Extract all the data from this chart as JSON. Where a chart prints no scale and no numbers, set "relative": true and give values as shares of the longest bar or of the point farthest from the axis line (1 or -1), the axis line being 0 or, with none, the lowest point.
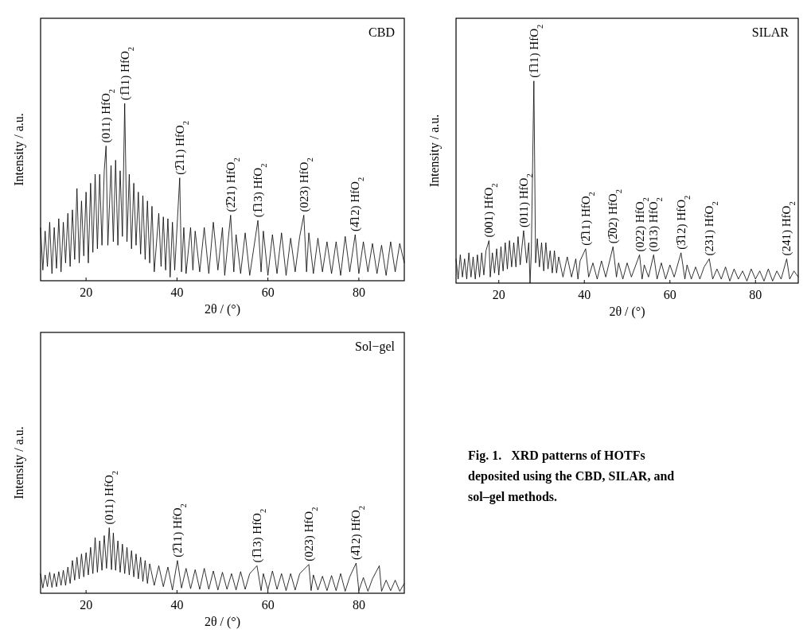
{
  "chart_data": [
    {
      "type": "line",
      "title": "CBD",
      "xlabel": "2θ / (°)",
      "ylabel": "Intensity / a.u.",
      "relative": true,
      "xlim": [
        10,
        90
      ],
      "xticks": [
        20,
        40,
        60,
        80
      ],
      "series": [
        {
          "color": "#000000",
          "x": [
            10,
            10.5,
            11,
            11.5,
            12,
            12.5,
            13,
            13.5,
            14,
            14.5,
            15,
            15.5,
            16,
            16.5,
            17,
            17.5,
            18,
            18.5,
            19,
            19.5,
            20,
            20.5,
            21,
            21.5,
            22,
            22.5,
            23,
            23.5,
            24,
            24.4,
            24.8,
            25.5,
            26,
            26.5,
            27,
            27.5,
            28,
            28.5,
            29,
            29.5,
            30,
            30.5,
            31,
            31.5,
            32,
            32.5,
            33,
            33.5,
            34,
            34.5,
            35,
            36,
            36.5,
            37,
            37.5,
            38,
            38.5,
            39,
            39.5,
            40.6,
            41,
            41.5,
            42,
            43,
            43.5,
            44,
            45,
            46,
            47,
            48,
            49,
            50,
            50.5,
            51.8,
            52.5,
            53,
            54,
            55,
            56,
            57.8,
            58.5,
            59,
            60,
            61,
            62,
            63,
            64,
            65,
            66,
            67,
            67.9,
            68.5,
            69,
            70,
            71,
            72,
            73,
            74,
            75,
            76,
            77,
            78,
            79.2,
            80,
            81,
            82,
            83,
            84,
            85,
            86,
            87,
            88,
            89,
            90
          ],
          "values": [
            0.3,
            0.06,
            0.28,
            0.08,
            0.33,
            0.04,
            0.3,
            0.07,
            0.35,
            0.05,
            0.33,
            0.1,
            0.38,
            0.08,
            0.4,
            0.12,
            0.52,
            0.1,
            0.45,
            0.14,
            0.5,
            0.1,
            0.55,
            0.16,
            0.6,
            0.18,
            0.6,
            0.2,
            0.62,
            0.76,
            0.2,
            0.65,
            0.22,
            0.68,
            0.2,
            0.62,
            0.25,
            1,
            0.22,
            0.6,
            0.18,
            0.55,
            0.2,
            0.5,
            0.15,
            0.48,
            0.12,
            0.45,
            0.1,
            0.42,
            0.05,
            0.38,
            0.08,
            0.36,
            0.06,
            0.35,
            0.02,
            0.33,
            0.06,
            0.58,
            0.05,
            0.3,
            0.04,
            0.3,
            0.06,
            0.28,
            0.05,
            0.3,
            0.04,
            0.33,
            0.06,
            0.3,
            0.03,
            0.37,
            0.05,
            0.26,
            0.04,
            0.27,
            0.03,
            0.34,
            0.05,
            0.28,
            0.03,
            0.26,
            0.04,
            0.27,
            0.03,
            0.24,
            0.05,
            0.25,
            0.37,
            0.05,
            0.27,
            0.04,
            0.24,
            0.05,
            0.22,
            0.04,
            0.22,
            0.03,
            0.25,
            0.05,
            0.26,
            0.04,
            0.22,
            0.05,
            0.21,
            0.04,
            0.2,
            0.03,
            0.22,
            0.05,
            0.21,
            0.1
          ]
        }
      ],
      "annotations": [
        {
          "text": "(011) HfO$_{2}$",
          "x": 24.4,
          "y": 0.76
        },
        {
          "text": "(1̅11) HfO$_{2}$",
          "x": 28.5,
          "y": 1
        },
        {
          "text": "(2̅11) HfO$_{2}$",
          "x": 40.6,
          "y": 0.58
        },
        {
          "text": "(2̅21) HfO$_{2}$",
          "x": 51.8,
          "y": 0.37
        },
        {
          "text": "(1̅13) HfO$_{2}$",
          "x": 57.8,
          "y": 0.34
        },
        {
          "text": "(023) HfO$_{2}$",
          "x": 67.9,
          "y": 0.37
        },
        {
          "text": "(4̅12) HfO$_{2}$",
          "x": 79.2,
          "y": 0.26
        }
      ]
    },
    {
      "type": "line",
      "title": "SILAR",
      "xlabel": "2θ / (°)",
      "ylabel": "Intensity / a.u.",
      "relative": true,
      "xlim": [
        10,
        90
      ],
      "xticks": [
        20,
        40,
        60,
        80
      ],
      "series": [
        {
          "color": "#000000",
          "x": [
            10,
            10.5,
            11,
            11.5,
            12,
            12.5,
            13,
            13.5,
            14,
            14.5,
            15,
            15.5,
            16,
            16.5,
            17,
            17.7,
            18,
            18.5,
            19,
            19.5,
            20,
            20.5,
            21,
            21.5,
            22,
            22.5,
            23,
            23.5,
            24,
            24.5,
            25,
            25.8,
            26.5,
            27,
            27.3,
            27.6,
            28.2,
            28.6,
            29,
            29.5,
            30,
            30.5,
            31,
            31.5,
            32,
            32.5,
            33,
            33.5,
            34,
            35,
            36,
            37,
            38,
            38.5,
            39,
            40.3,
            41,
            42,
            43,
            44,
            45,
            46.7,
            47.5,
            48,
            49,
            50,
            51,
            52.9,
            53.5,
            54,
            55,
            56.2,
            57,
            58,
            59,
            60,
            61,
            62.6,
            63.5,
            64,
            65,
            66,
            67,
            68,
            69.2,
            70,
            71,
            72,
            73,
            74,
            75,
            76,
            77,
            78,
            79,
            80,
            81,
            82,
            83,
            84,
            85,
            86,
            87.3,
            88,
            89,
            90
          ],
          "values": [
            0.12,
            0.02,
            0.14,
            0.03,
            0.12,
            0.02,
            0.15,
            0.03,
            0.13,
            0.02,
            0.14,
            0.03,
            0.15,
            0.04,
            0.16,
            0.21,
            0.03,
            0.15,
            0.05,
            0.17,
            0.04,
            0.18,
            0.06,
            0.2,
            0.07,
            0.21,
            0.08,
            0.2,
            0.08,
            0.23,
            0.09,
            0.26,
            0.1,
            0.2,
            0,
            0.15,
            1,
            0.1,
            0.22,
            0.08,
            0.2,
            0.06,
            0.2,
            0.07,
            0.16,
            0.05,
            0.16,
            0.05,
            0.13,
            0.03,
            0.13,
            0.03,
            0.12,
            0.02,
            0.11,
            0.17,
            0.03,
            0.1,
            0.02,
            0.11,
            0.03,
            0.18,
            0.03,
            0.1,
            0.02,
            0.1,
            0.03,
            0.14,
            0.02,
            0.09,
            0.03,
            0.14,
            0.02,
            0.1,
            0.02,
            0.09,
            0.03,
            0.15,
            0.02,
            0.09,
            0.02,
            0.08,
            0.02,
            0.08,
            0.12,
            0.02,
            0.07,
            0.02,
            0.08,
            0.01,
            0.07,
            0.02,
            0.06,
            0.01,
            0.07,
            0.02,
            0.06,
            0.01,
            0.07,
            0.01,
            0.06,
            0.02,
            0.12,
            0.02,
            0.06,
            0.03
          ]
        }
      ],
      "annotations": [
        {
          "text": "(001) HfO$_{2}$",
          "x": 17.7,
          "y": 0.21
        },
        {
          "text": "(011) HfO$_{2}$",
          "x": 25.8,
          "y": 0.26
        },
        {
          "text": "(1̅11) HfO$_{2}$",
          "x": 28.2,
          "y": 1
        },
        {
          "text": "(2̅11) HfO$_{2}$",
          "x": 40.3,
          "y": 0.17
        },
        {
          "text": "(2̅02) HfO$_{2}$",
          "x": 46.7,
          "y": 0.18
        },
        {
          "text": "(022) HfO$_{2}$",
          "x": 52.9,
          "y": 0.14
        },
        {
          "text": "(013) HfO$_{2}$",
          "x": 56.2,
          "y": 0.14
        },
        {
          "text": "(3̅12) HfO$_{2}$",
          "x": 62.6,
          "y": 0.15
        },
        {
          "text": "(231) HfO$_{2}$",
          "x": 69.2,
          "y": 0.12
        },
        {
          "text": "(241) HfO$_{2}$",
          "x": 87.3,
          "y": 0.12
        }
      ]
    },
    {
      "type": "line",
      "title": "Sol−gel",
      "xlabel": "2θ / (°)",
      "ylabel": "Intensity / a.u.",
      "relative": true,
      "xlim": [
        10,
        90
      ],
      "xticks": [
        20,
        40,
        60,
        80
      ],
      "series": [
        {
          "color": "#000000",
          "x": [
            10,
            10.5,
            11,
            11.5,
            12,
            12.5,
            13,
            13.5,
            14,
            14.5,
            15,
            15.5,
            16,
            16.5,
            17,
            17.5,
            18,
            18.5,
            19,
            19.5,
            20,
            20.5,
            21,
            21.5,
            22,
            22.5,
            23,
            23.5,
            24,
            24.5,
            25.1,
            25.6,
            26,
            26.5,
            27,
            27.5,
            28,
            28.5,
            29,
            29.5,
            30,
            30.5,
            31,
            31.5,
            32,
            32.5,
            33,
            33.5,
            34,
            35,
            36,
            37,
            38,
            39,
            40.1,
            41,
            42,
            43,
            44,
            45,
            46,
            47,
            48,
            49,
            50,
            51,
            52,
            53,
            54,
            55,
            56,
            57.6,
            58.5,
            59,
            60,
            61,
            62,
            63,
            64,
            65,
            66,
            67,
            69,
            69.5,
            70,
            71,
            72,
            73,
            74,
            75,
            76,
            77,
            78,
            79.4,
            80,
            81,
            82,
            83,
            84.5,
            85,
            86,
            87,
            88,
            89,
            90
          ],
          "values": [
            0.3,
            0.08,
            0.28,
            0.1,
            0.32,
            0.09,
            0.3,
            0.1,
            0.33,
            0.12,
            0.35,
            0.12,
            0.4,
            0.15,
            0.5,
            0.2,
            0.55,
            0.22,
            0.6,
            0.25,
            0.62,
            0.28,
            0.7,
            0.3,
            0.85,
            0.32,
            0.8,
            0.35,
            0.88,
            0.38,
            1,
            0.36,
            0.92,
            0.35,
            0.8,
            0.32,
            0.75,
            0.3,
            0.7,
            0.28,
            0.65,
            0.25,
            0.6,
            0.22,
            0.55,
            0.18,
            0.5,
            0.15,
            0.45,
            0.12,
            0.42,
            0.1,
            0.4,
            0.05,
            0.5,
            0.08,
            0.38,
            0.07,
            0.36,
            0.06,
            0.38,
            0.06,
            0.34,
            0.05,
            0.32,
            0.06,
            0.3,
            0.05,
            0.33,
            0.06,
            0.3,
            0.42,
            0.04,
            0.3,
            0.05,
            0.34,
            0.06,
            0.3,
            0.04,
            0.3,
            0.05,
            0.3,
            0.44,
            0.04,
            0.28,
            0.05,
            0.26,
            0.04,
            0.27,
            0.04,
            0.3,
            0.03,
            0.25,
            0.46,
            0.04,
            0.24,
            0.03,
            0.22,
            0.42,
            0.03,
            0.2,
            0.04,
            0.2,
            0.03,
            0.15
          ]
        }
      ],
      "annotations": [
        {
          "text": "(011) HfO$_{2}$",
          "x": 25.1,
          "y": 1
        },
        {
          "text": "(2̅11) HfO$_{2}$",
          "x": 40.1,
          "y": 0.5
        },
        {
          "text": "(1̅13) HfO$_{2}$",
          "x": 57.6,
          "y": 0.42
        },
        {
          "text": "(023) HfO$_{2}$",
          "x": 69,
          "y": 0.44
        },
        {
          "text": "(4̅12) HfO$_{2}$",
          "x": 79.4,
          "y": 0.46
        }
      ]
    },
    {
      "type": "other",
      "title": "Fig. 1.   XRD patterns of HOTFs deposited using the CBD, SILAR, and sol–gel methods."
    }
  ]
}
